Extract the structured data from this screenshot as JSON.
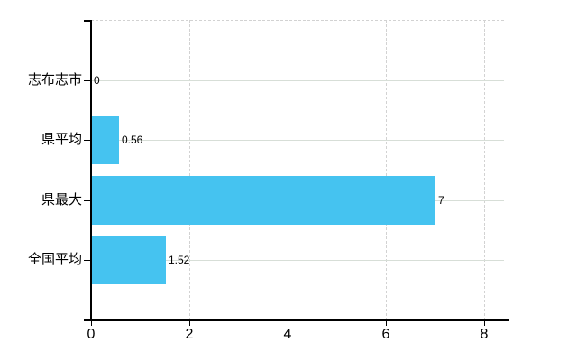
{
  "chart_data": {
    "type": "bar",
    "orientation": "horizontal",
    "title": "",
    "xlabel": "",
    "ylabel": "",
    "categories": [
      "志布志市",
      "県平均",
      "県最大",
      "全国平均"
    ],
    "values": [
      0,
      0.56,
      7,
      1.52
    ],
    "value_labels": [
      "0",
      "0.56",
      "7",
      "1.52"
    ],
    "x_ticks": [
      0,
      2,
      4,
      6,
      8
    ],
    "x_tick_labels": [
      "0",
      "2",
      "4",
      "6",
      "8"
    ],
    "xlim": [
      0,
      8.4
    ],
    "grid": "vertical dashed at ticks, horizontal solid at category centers, dashed top border",
    "legend": "none",
    "colors": {
      "bar": "#45C3F0",
      "hgrid": "#d7ded7",
      "vgrid": "#d2d2d2",
      "axis": "#000000",
      "text": "#000000"
    }
  }
}
